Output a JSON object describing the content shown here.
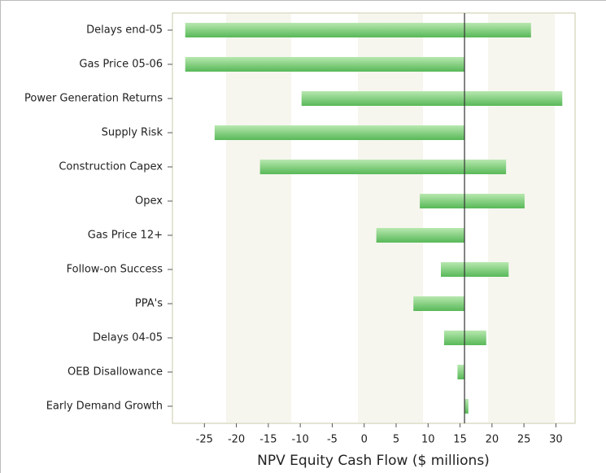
{
  "chart_data": {
    "type": "tornado",
    "x_label": "NPV Equity Cash Flow ($ millions)",
    "categories": [
      "Delays end-05",
      "Gas Price 05-06",
      "Power Generation Returns",
      "Supply Risk",
      "Construction Capex",
      "Opex",
      "Gas Price 12+",
      "Follow-on Success",
      "PPA's",
      "Delays 04-05",
      "OEB Disallowance",
      "Early Demand Growth"
    ],
    "low": [
      -28,
      -28,
      -9.8,
      -23.4,
      -16.3,
      8.7,
      1.9,
      12,
      7.7,
      12.5,
      14.6,
      15.7
    ],
    "high": [
      26.1,
      15.7,
      31,
      15.7,
      22.2,
      25.1,
      15.7,
      22.6,
      15.7,
      19.1,
      15.7,
      16.3
    ],
    "base": 15.7,
    "xlim": [
      -30,
      33
    ],
    "xticks": [
      -25,
      -20,
      -15,
      -10,
      -5,
      0,
      5,
      10,
      15,
      20,
      25,
      30
    ],
    "color": "#6cc86c"
  }
}
